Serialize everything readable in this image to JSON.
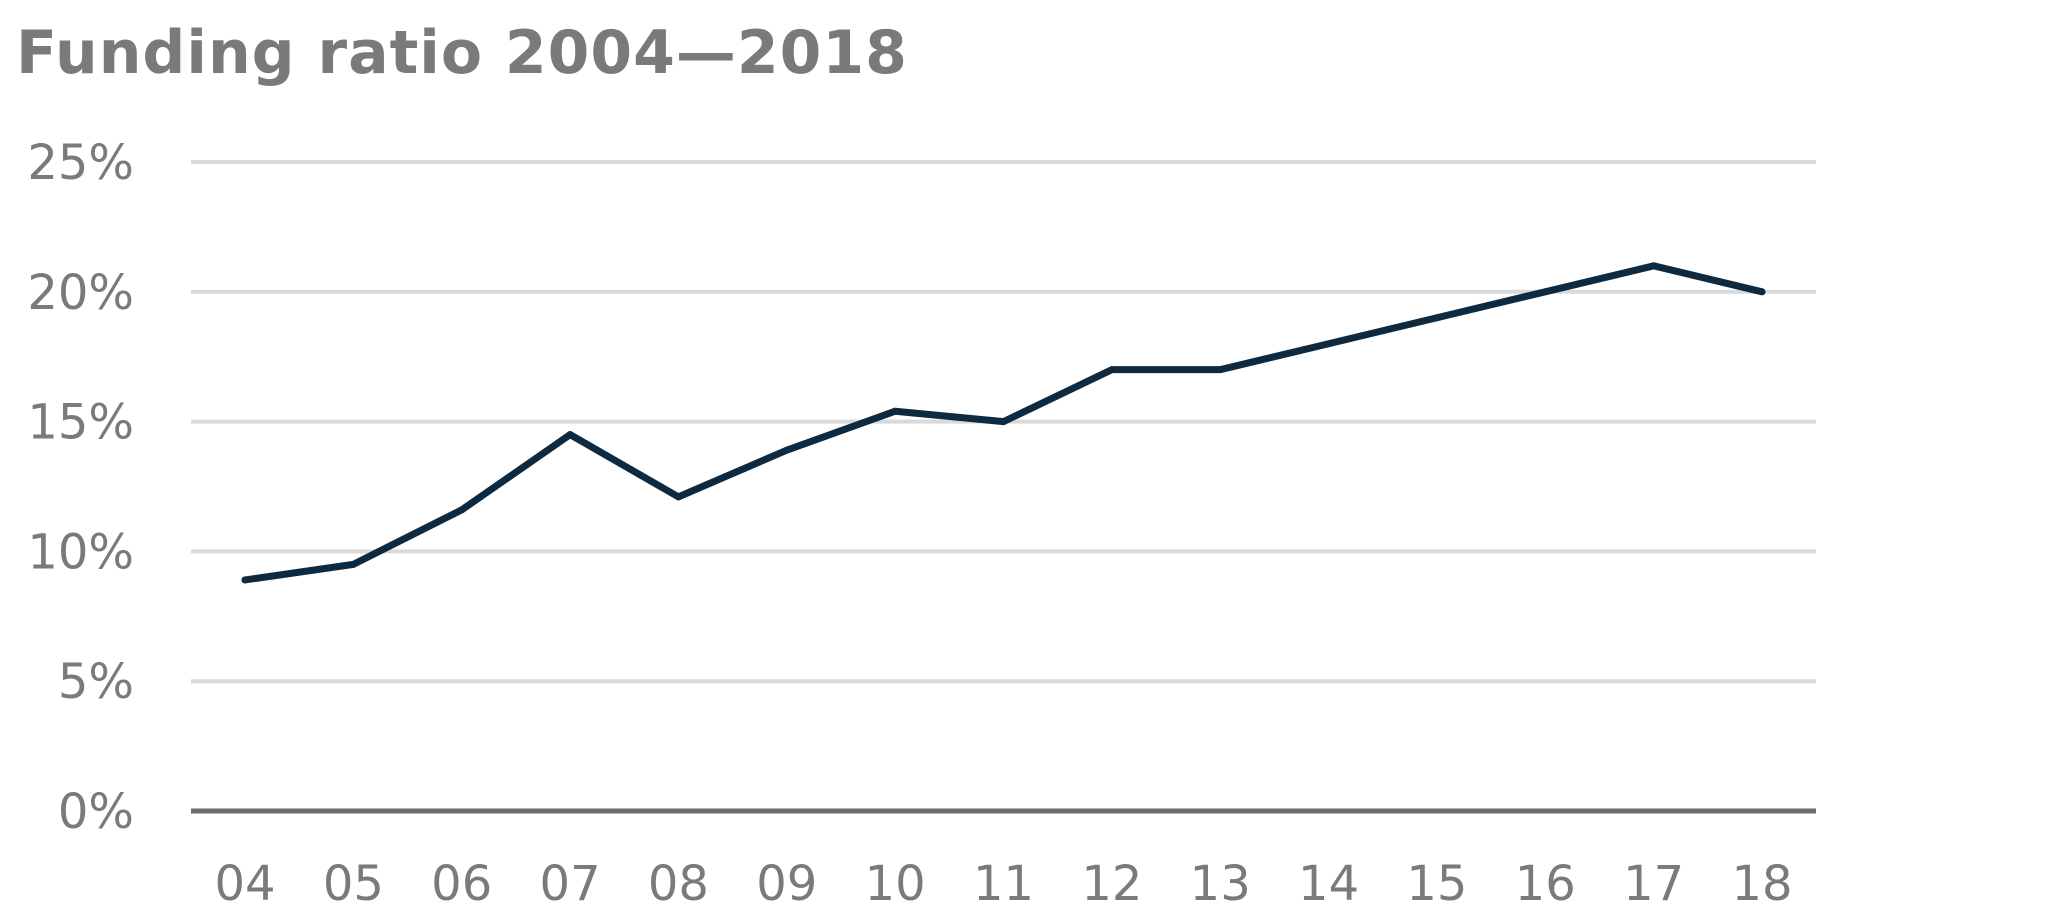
{
  "chart_data": {
    "type": "line",
    "title": "Funding ratio 2004—2018",
    "xlabel": "",
    "ylabel": "",
    "categories": [
      "04",
      "05",
      "06",
      "07",
      "08",
      "09",
      "10",
      "11",
      "12",
      "13",
      "14",
      "15",
      "16",
      "17",
      "18"
    ],
    "series": [
      {
        "name": "Funding ratio",
        "values": [
          8.9,
          9.5,
          11.6,
          14.5,
          12.1,
          13.9,
          15.4,
          15.0,
          17.0,
          17.0,
          18.0,
          19.0,
          20.0,
          21.0,
          20.0
        ],
        "color": "#0d2a40"
      }
    ],
    "ylim": [
      0,
      25
    ],
    "yticks": [
      0,
      5,
      10,
      15,
      20,
      25
    ],
    "ytick_labels": [
      "0%",
      "5%",
      "10%",
      "15%",
      "20%",
      "25%"
    ],
    "grid": true,
    "legend": "none",
    "colors": {
      "grid": "#d9d9d9",
      "baseline": "#6b6b6b",
      "text": "#7a7a7a"
    }
  }
}
